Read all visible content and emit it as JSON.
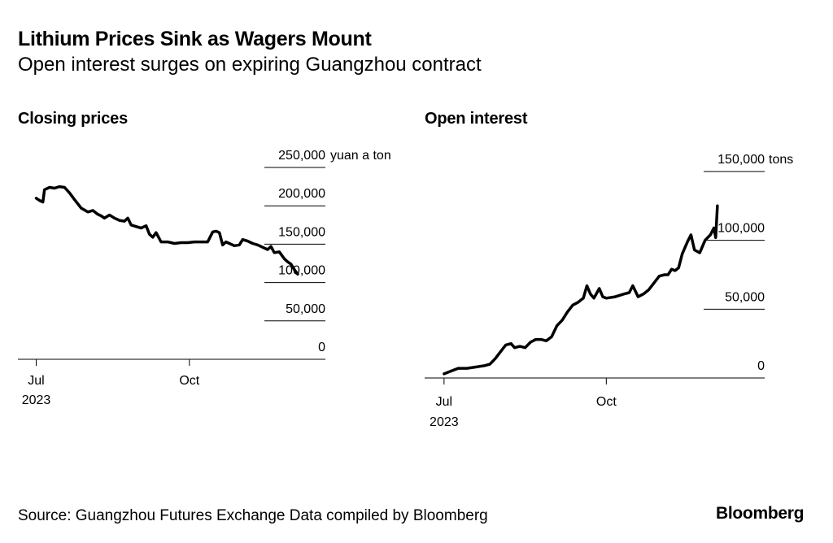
{
  "header": {
    "title": "Lithium Prices Sink as Wagers Mount",
    "subtitle": "Open interest surges on expiring Guangzhou contract"
  },
  "footer": {
    "source": "Source: Guangzhou Futures Exchange Data compiled by Bloomberg",
    "logo": "Bloomberg"
  },
  "colors": {
    "line": "#000000",
    "axis": "#000000",
    "background": "#ffffff"
  },
  "chart_data": [
    {
      "type": "line",
      "title": "Closing prices",
      "unit": "yuan a ton",
      "x_ticks": [
        {
          "value": "2023-07-01",
          "label": "Jul",
          "sublabel": "2023"
        },
        {
          "value": "2023-10-01",
          "label": "Oct",
          "sublabel": ""
        }
      ],
      "x_range": [
        "2023-06-20",
        "2024-01-20"
      ],
      "ylim": [
        0,
        250000
      ],
      "y_ticks": [
        {
          "value": 250000,
          "label": "250,000"
        },
        {
          "value": 200000,
          "label": "200,000"
        },
        {
          "value": 150000,
          "label": "150,000"
        },
        {
          "value": 100000,
          "label": "100,000"
        },
        {
          "value": 50000,
          "label": "50,000"
        },
        {
          "value": 0,
          "label": "0"
        }
      ],
      "y_axis_position": "right",
      "grid": "y-ticks-only",
      "series": [
        {
          "x": [
            "2023-07-01",
            "2023-07-03",
            "2023-07-05",
            "2023-07-06",
            "2023-07-09",
            "2023-07-12",
            "2023-07-15",
            "2023-07-18",
            "2023-07-21",
            "2023-07-24",
            "2023-07-28",
            "2023-08-01",
            "2023-08-04",
            "2023-08-07",
            "2023-08-09",
            "2023-08-11",
            "2023-08-14",
            "2023-08-17",
            "2023-08-20",
            "2023-08-23",
            "2023-08-25",
            "2023-08-27",
            "2023-08-30",
            "2023-09-02",
            "2023-09-05",
            "2023-09-07",
            "2023-09-09",
            "2023-09-11",
            "2023-09-14",
            "2023-09-18",
            "2023-09-22",
            "2023-09-26",
            "2023-09-30",
            "2023-10-04",
            "2023-10-08",
            "2023-10-12",
            "2023-10-15",
            "2023-10-17",
            "2023-10-19",
            "2023-10-21",
            "2023-10-23",
            "2023-10-25",
            "2023-10-28",
            "2023-10-31",
            "2023-11-02",
            "2023-11-05",
            "2023-11-08",
            "2023-11-11",
            "2023-11-14",
            "2023-11-17",
            "2023-11-19",
            "2023-11-21",
            "2023-11-24",
            "2023-11-27",
            "2023-11-29",
            "2023-12-01",
            "2023-12-03",
            "2023-12-05"
          ],
          "values": [
            210000,
            207000,
            205000,
            221000,
            224000,
            223000,
            225000,
            224000,
            217000,
            208000,
            197000,
            192000,
            194000,
            189000,
            187000,
            184000,
            188000,
            184000,
            181000,
            180000,
            184000,
            175000,
            173000,
            171000,
            174000,
            163000,
            159000,
            165000,
            153000,
            153000,
            151000,
            152000,
            152000,
            153000,
            153000,
            153000,
            166000,
            167000,
            165000,
            149000,
            153000,
            151000,
            148000,
            149000,
            156000,
            154000,
            151000,
            149000,
            146000,
            143000,
            147000,
            139000,
            140000,
            131000,
            127000,
            124000,
            117000,
            111000
          ]
        }
      ]
    },
    {
      "type": "line",
      "title": "Open interest",
      "unit": "tons",
      "x_ticks": [
        {
          "value": "2023-07-01",
          "label": "Jul",
          "sublabel": "2023"
        },
        {
          "value": "2023-10-01",
          "label": "Oct",
          "sublabel": ""
        }
      ],
      "x_range": [
        "2023-06-20",
        "2024-01-20"
      ],
      "ylim": [
        0,
        150000
      ],
      "y_ticks": [
        {
          "value": 150000,
          "label": "150,000"
        },
        {
          "value": 100000,
          "label": "100,000"
        },
        {
          "value": 50000,
          "label": "50,000"
        },
        {
          "value": 0,
          "label": "0"
        }
      ],
      "y_axis_position": "right",
      "grid": "y-ticks-only",
      "series": [
        {
          "x": [
            "2023-07-01",
            "2023-07-05",
            "2023-07-09",
            "2023-07-14",
            "2023-07-19",
            "2023-07-24",
            "2023-07-27",
            "2023-07-30",
            "2023-08-02",
            "2023-08-05",
            "2023-08-08",
            "2023-08-10",
            "2023-08-13",
            "2023-08-16",
            "2023-08-19",
            "2023-08-22",
            "2023-08-25",
            "2023-08-28",
            "2023-08-31",
            "2023-09-03",
            "2023-09-06",
            "2023-09-09",
            "2023-09-12",
            "2023-09-15",
            "2023-09-18",
            "2023-09-20",
            "2023-09-22",
            "2023-09-24",
            "2023-09-27",
            "2023-09-29",
            "2023-10-01",
            "2023-10-06",
            "2023-10-11",
            "2023-10-14",
            "2023-10-16",
            "2023-10-19",
            "2023-10-22",
            "2023-10-25",
            "2023-10-28",
            "2023-10-31",
            "2023-11-03",
            "2023-11-05",
            "2023-11-07",
            "2023-11-09",
            "2023-11-11",
            "2023-11-13",
            "2023-11-16",
            "2023-11-18",
            "2023-11-20",
            "2023-11-23",
            "2023-11-26",
            "2023-11-29",
            "2023-12-01",
            "2023-12-02",
            "2023-12-03"
          ],
          "values": [
            3000,
            5000,
            7000,
            7000,
            8000,
            9000,
            10000,
            14000,
            19000,
            24000,
            25000,
            22000,
            23000,
            22000,
            26000,
            28000,
            28000,
            27000,
            30000,
            38000,
            42000,
            48000,
            53000,
            55000,
            58000,
            67000,
            61000,
            58000,
            65000,
            59000,
            58000,
            59000,
            61000,
            62000,
            67000,
            59000,
            61000,
            64000,
            69000,
            74000,
            75000,
            75000,
            79000,
            78000,
            80000,
            90000,
            99000,
            104000,
            93000,
            91000,
            100000,
            104000,
            109000,
            102000,
            125000
          ]
        }
      ]
    }
  ]
}
